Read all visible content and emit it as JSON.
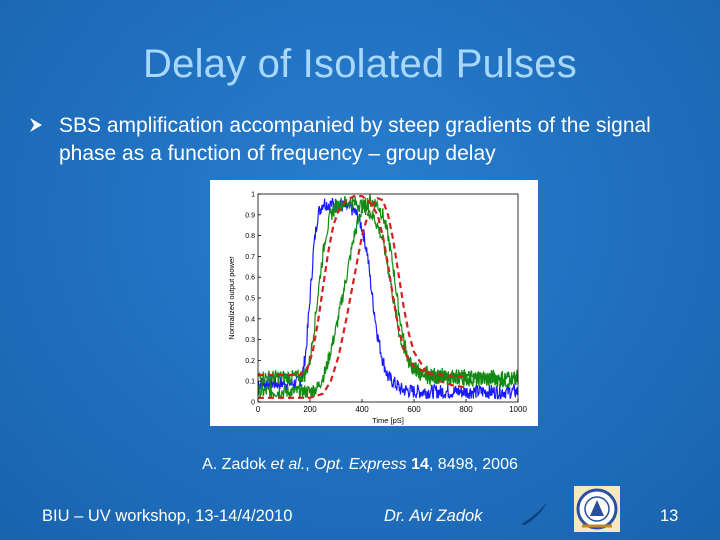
{
  "slide": {
    "title": "Delay of Isolated Pulses",
    "bullet": "SBS amplification accompanied by steep gradients of the signal phase as a function of frequency – group delay",
    "citation": {
      "prefix": "A. Zadok ",
      "etal": "et al.",
      "middle": ", ",
      "journal": "Opt. Express",
      "volume": " 14",
      "suffix": ", 8498, 2006"
    },
    "footer": {
      "left": "BIU – UV workshop, 13-14/4/2010",
      "center": "Dr. Avi Zadok",
      "page": "13"
    },
    "colors": {
      "background": "#1f6fbe",
      "title": "#a9d8ff",
      "text": "#ffffff"
    },
    "icons": [
      "arrow-bullet-icon",
      "swoosh-icon",
      "university-logo-icon"
    ]
  },
  "chart_data": {
    "type": "line",
    "xlabel": "Time [pS]",
    "ylabel": "Normalized output power",
    "xlim": [
      0,
      1000
    ],
    "ylim": [
      0,
      1
    ],
    "xticks": [
      "0",
      "200",
      "400",
      "600",
      "800",
      "1000"
    ],
    "yticks": [
      "0",
      "0.1",
      "0.2",
      "0.3",
      "0.4",
      "0.5",
      "0.6",
      "0.7",
      "0.8",
      "0.9",
      "1"
    ],
    "grid": false,
    "series": [
      {
        "color": "#1a1aff",
        "noisy": true,
        "x": [
          0,
          150,
          170,
          185,
          200,
          215,
          230,
          250,
          270,
          300,
          330,
          360,
          380,
          400,
          420,
          440,
          460,
          480,
          500,
          550,
          600,
          700,
          1000
        ],
        "y": [
          0.09,
          0.09,
          0.12,
          0.25,
          0.5,
          0.75,
          0.9,
          0.96,
          0.95,
          0.95,
          0.94,
          0.93,
          0.9,
          0.84,
          0.72,
          0.5,
          0.32,
          0.2,
          0.12,
          0.06,
          0.05,
          0.05,
          0.05
        ]
      },
      {
        "color": "#138a13",
        "noisy": true,
        "x": [
          0,
          200,
          230,
          260,
          300,
          340,
          370,
          400,
          430,
          460,
          480,
          500,
          520,
          540,
          560,
          580,
          600,
          650,
          700,
          800,
          1000
        ],
        "y": [
          0.05,
          0.05,
          0.07,
          0.15,
          0.35,
          0.6,
          0.8,
          0.93,
          0.97,
          0.95,
          0.9,
          0.8,
          0.65,
          0.45,
          0.3,
          0.2,
          0.15,
          0.12,
          0.12,
          0.11,
          0.1
        ]
      },
      {
        "color": "#d42020",
        "dashed": true,
        "noisy": false,
        "x": [
          0,
          200,
          250,
          280,
          310,
          340,
          370,
          400,
          430,
          460,
          480,
          500,
          520,
          540,
          560,
          580,
          600,
          650,
          700,
          750,
          800
        ],
        "y": [
          0.02,
          0.02,
          0.04,
          0.1,
          0.22,
          0.4,
          0.6,
          0.8,
          0.93,
          0.98,
          0.97,
          0.9,
          0.78,
          0.62,
          0.46,
          0.33,
          0.24,
          0.14,
          0.1,
          0.08,
          0.07
        ]
      },
      {
        "color": "#138a13",
        "noisy": true,
        "x": [
          0,
          150,
          180,
          200,
          220,
          240,
          260,
          280,
          300,
          330,
          360,
          390,
          420,
          450,
          480,
          500,
          520,
          540,
          560,
          580,
          600,
          650,
          700,
          800,
          1000
        ],
        "y": [
          0.12,
          0.12,
          0.13,
          0.2,
          0.4,
          0.62,
          0.8,
          0.9,
          0.94,
          0.96,
          0.96,
          0.95,
          0.93,
          0.88,
          0.78,
          0.65,
          0.5,
          0.35,
          0.25,
          0.19,
          0.16,
          0.14,
          0.13,
          0.12,
          0.12
        ]
      },
      {
        "color": "#d42020",
        "dashed": true,
        "noisy": false,
        "x": [
          0,
          160,
          190,
          210,
          230,
          250,
          270,
          290,
          310,
          340,
          370,
          400,
          430,
          460,
          480,
          500,
          520,
          540,
          560,
          580,
          600,
          650,
          700,
          800
        ],
        "y": [
          0.13,
          0.13,
          0.16,
          0.24,
          0.38,
          0.55,
          0.72,
          0.85,
          0.92,
          0.97,
          0.99,
          0.99,
          0.96,
          0.9,
          0.8,
          0.66,
          0.5,
          0.36,
          0.26,
          0.2,
          0.17,
          0.14,
          0.13,
          0.12
        ]
      }
    ]
  }
}
